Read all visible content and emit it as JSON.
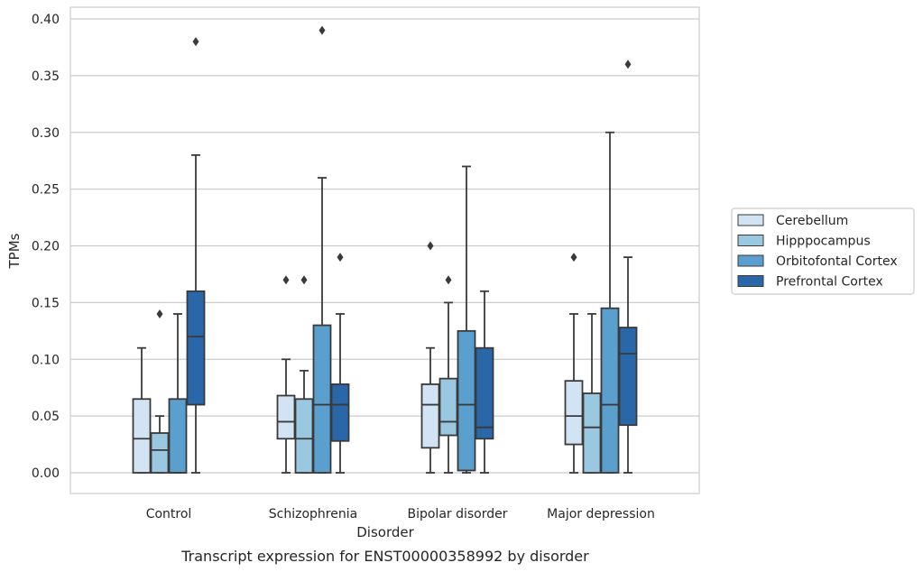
{
  "chart_data": {
    "type": "box",
    "caption": "Transcript expression for ENST00000358992 by disorder",
    "xlabel": "Disorder",
    "ylabel": "TPMs",
    "ylim": [
      -0.019,
      0.41
    ],
    "yticks": [
      0.0,
      0.05,
      0.1,
      0.15,
      0.2,
      0.25,
      0.3,
      0.35,
      0.4
    ],
    "ytick_labels": [
      "0.00",
      "0.05",
      "0.10",
      "0.15",
      "0.20",
      "0.25",
      "0.30",
      "0.35",
      "0.40"
    ],
    "grid": "horizontal",
    "legend_position": "right",
    "categories": [
      "Control",
      "Schizophrenia",
      "Bipolar disorder",
      "Major depression"
    ],
    "series": [
      {
        "name": "Cerebellum",
        "color": "#d2e3f3",
        "boxes": [
          {
            "min": 0.0,
            "q1": 0.0,
            "median": 0.03,
            "q3": 0.065,
            "max": 0.11,
            "outliers": []
          },
          {
            "min": 0.0,
            "q1": 0.03,
            "median": 0.045,
            "q3": 0.068,
            "max": 0.1,
            "outliers": [
              0.17
            ]
          },
          {
            "min": 0.0,
            "q1": 0.022,
            "median": 0.06,
            "q3": 0.078,
            "max": 0.11,
            "outliers": [
              0.2
            ]
          },
          {
            "min": 0.0,
            "q1": 0.025,
            "median": 0.05,
            "q3": 0.081,
            "max": 0.14,
            "outliers": [
              0.19
            ]
          }
        ]
      },
      {
        "name": "Hipppocampus",
        "color": "#9ac8e0",
        "boxes": [
          {
            "min": 0.0,
            "q1": 0.0,
            "median": 0.02,
            "q3": 0.035,
            "max": 0.05,
            "outliers": [
              0.14
            ]
          },
          {
            "min": 0.0,
            "q1": 0.0,
            "median": 0.03,
            "q3": 0.065,
            "max": 0.09,
            "outliers": [
              0.17
            ]
          },
          {
            "min": 0.0,
            "q1": 0.033,
            "median": 0.045,
            "q3": 0.083,
            "max": 0.15,
            "outliers": [
              0.17
            ]
          },
          {
            "min": 0.0,
            "q1": 0.0,
            "median": 0.04,
            "q3": 0.07,
            "max": 0.14,
            "outliers": []
          }
        ]
      },
      {
        "name": "Orbitofontal Cortex",
        "color": "#5a9fcd",
        "boxes": [
          {
            "min": 0.0,
            "q1": 0.0,
            "median": 0.0,
            "q3": 0.065,
            "max": 0.14,
            "outliers": []
          },
          {
            "min": 0.0,
            "q1": 0.0,
            "median": 0.06,
            "q3": 0.13,
            "max": 0.26,
            "outliers": [
              0.39
            ]
          },
          {
            "min": 0.0,
            "q1": 0.002,
            "median": 0.06,
            "q3": 0.125,
            "max": 0.27,
            "outliers": []
          },
          {
            "min": 0.0,
            "q1": 0.0,
            "median": 0.06,
            "q3": 0.145,
            "max": 0.3,
            "outliers": []
          }
        ]
      },
      {
        "name": "Prefrontal Cortex",
        "color": "#2967a8",
        "boxes": [
          {
            "min": 0.0,
            "q1": 0.06,
            "median": 0.12,
            "q3": 0.16,
            "max": 0.28,
            "outliers": [
              0.38
            ]
          },
          {
            "min": 0.0,
            "q1": 0.028,
            "median": 0.06,
            "q3": 0.078,
            "max": 0.14,
            "outliers": [
              0.19
            ]
          },
          {
            "min": 0.0,
            "q1": 0.03,
            "median": 0.04,
            "q3": 0.11,
            "max": 0.16,
            "outliers": []
          },
          {
            "min": 0.0,
            "q1": 0.042,
            "median": 0.105,
            "q3": 0.128,
            "max": 0.19,
            "outliers": [
              0.36
            ]
          }
        ]
      }
    ]
  }
}
